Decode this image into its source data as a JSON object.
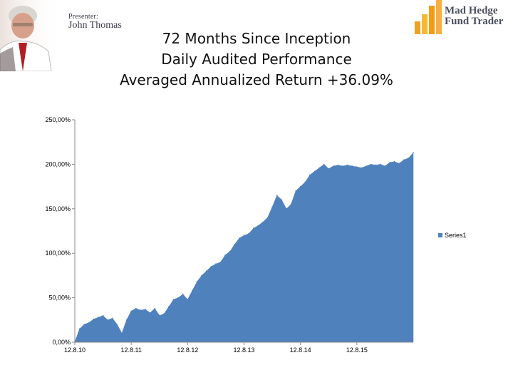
{
  "header": {
    "presenter_label": "Presenter:",
    "presenter_name": "John Thomas",
    "logo_line1": "Mad Hedge",
    "logo_line2": "Fund Trader"
  },
  "title_lines": [
    "72 Months Since Inception",
    "Daily Audited Performance",
    "Averaged Annualized Return +36.09%"
  ],
  "colors": {
    "series": "#4f81bd",
    "axis": "#888888"
  },
  "chart_data": {
    "type": "area",
    "ylim": [
      0,
      250
    ],
    "yticks": [
      0,
      50,
      100,
      150,
      200,
      250
    ],
    "ytick_labels": [
      "0,00%",
      "50,00%",
      "100,00%",
      "150,00%",
      "200,00%",
      "250,00%"
    ],
    "xlim": [
      0,
      72
    ],
    "xticks": [
      0,
      12,
      24,
      36,
      48,
      60
    ],
    "xtick_labels": [
      "12.8.10",
      "12.8.11",
      "12.8.12",
      "12.8.13",
      "12.8.14",
      "12.8.15"
    ],
    "grid": false,
    "legend_position": "right",
    "series": [
      {
        "name": "Series1",
        "x": [
          0,
          1,
          2,
          3,
          4,
          5,
          6,
          7,
          8,
          9,
          10,
          11,
          12,
          13,
          14,
          15,
          16,
          17,
          18,
          19,
          20,
          21,
          22,
          23,
          24,
          25,
          26,
          27,
          28,
          29,
          30,
          31,
          32,
          33,
          34,
          35,
          36,
          37,
          38,
          39,
          40,
          41,
          42,
          43,
          44,
          45,
          46,
          47,
          48,
          49,
          50,
          51,
          52,
          53,
          54,
          55,
          56,
          57,
          58,
          59,
          60,
          61,
          62,
          63,
          64,
          65,
          66,
          67,
          68,
          69,
          70,
          71,
          72
        ],
        "y": [
          0,
          15,
          20,
          22,
          26,
          28,
          30,
          25,
          27,
          20,
          10,
          25,
          35,
          38,
          36,
          37,
          33,
          38,
          30,
          32,
          40,
          48,
          50,
          54,
          48,
          58,
          68,
          75,
          80,
          85,
          88,
          90,
          98,
          102,
          110,
          117,
          120,
          122,
          128,
          131,
          135,
          140,
          152,
          165,
          160,
          150,
          155,
          170,
          175,
          180,
          188,
          192,
          196,
          200,
          195,
          198,
          199,
          198,
          199,
          198,
          197,
          196,
          198,
          200,
          199,
          200,
          198,
          202,
          203,
          201,
          205,
          207,
          213
        ]
      }
    ]
  }
}
